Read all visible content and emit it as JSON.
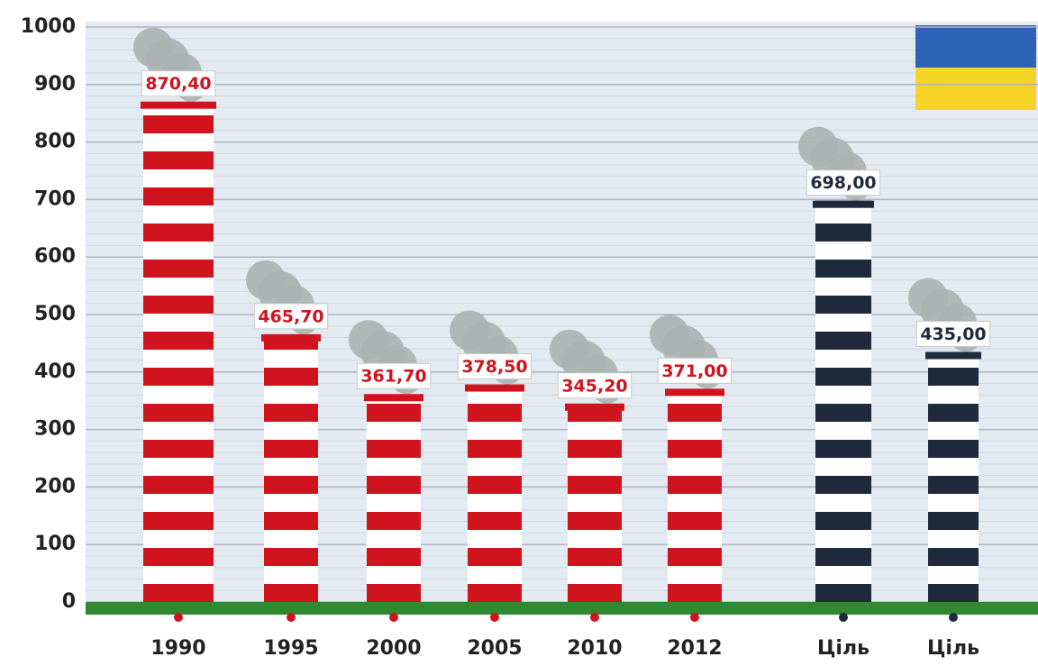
{
  "chart_data": {
    "type": "bar",
    "categories": [
      "1990",
      "1995",
      "2000",
      "2005",
      "2010",
      "2012",
      "Ціль",
      "Ціль"
    ],
    "values": [
      870.4,
      465.7,
      361.7,
      378.5,
      345.2,
      371.0,
      698.0,
      435.0
    ],
    "value_labels": [
      "870,40",
      "465,70",
      "361,70",
      "378,50",
      "345,20",
      "371,00",
      "698,00",
      "435,00"
    ],
    "colors": [
      "#d0141e",
      "#d0141e",
      "#d0141e",
      "#d0141e",
      "#d0141e",
      "#d0141e",
      "#1f2a3c",
      "#1f2a3c"
    ],
    "ylim": [
      0,
      1000
    ],
    "yticks": [
      0,
      100,
      200,
      300,
      400,
      500,
      600,
      700,
      800,
      900,
      1000
    ],
    "grid": true
  }
}
